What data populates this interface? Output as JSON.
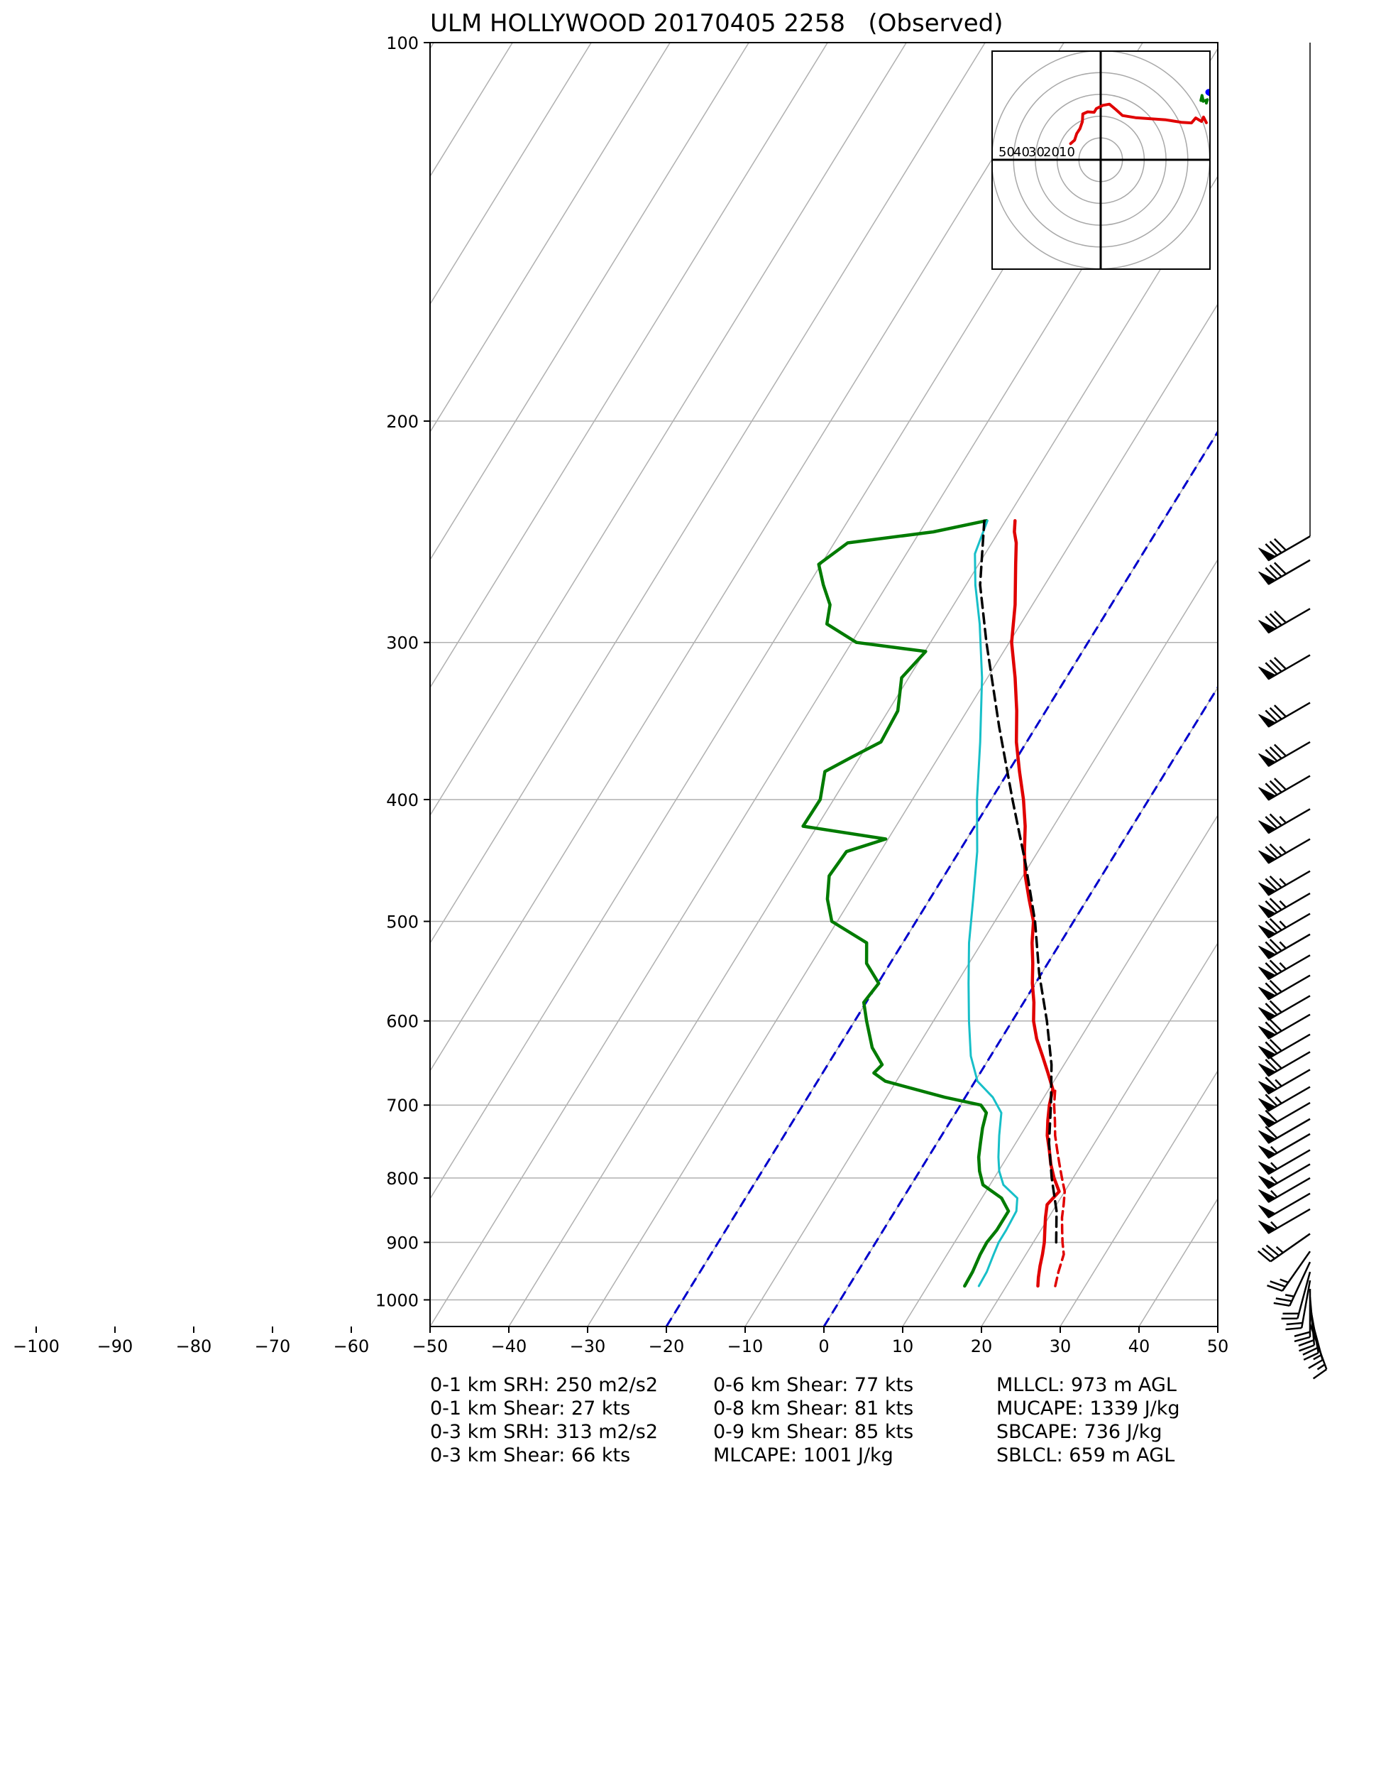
{
  "chart_data": {
    "type": "line",
    "title": "ULM HOLLYWOOD 20170405 2258   (Observed)",
    "x_axis": {
      "range": [
        -100,
        50
      ],
      "plot_range": [
        -50,
        50
      ],
      "ticks": [
        -100,
        -90,
        -80,
        -70,
        -60,
        -50,
        -40,
        -30,
        -20,
        -10,
        0,
        10,
        20,
        30,
        40,
        50
      ]
    },
    "y_axis": {
      "scale": "log",
      "range": [
        1050,
        100
      ],
      "ticks": [
        100,
        200,
        300,
        400,
        500,
        600,
        700,
        800,
        900,
        1000
      ]
    },
    "grid": true,
    "skew_isotherms": true,
    "colors": {
      "temperature": "#e00000",
      "dewpoint": "#007b00",
      "wetbulb": "#17bfc8",
      "parcel": "#000000",
      "isotherm_highlight": "#0000cc",
      "grid": "#b0b0b0"
    },
    "series": [
      {
        "key": "temperature",
        "points": [
          [
            975,
            24
          ],
          [
            960,
            23.4
          ],
          [
            940,
            22.7
          ],
          [
            920,
            22.1
          ],
          [
            900,
            21.4
          ],
          [
            880,
            20.5
          ],
          [
            860,
            19.6
          ],
          [
            840,
            18.8
          ],
          [
            820,
            19.3
          ],
          [
            800,
            17.6
          ],
          [
            780,
            16.1
          ],
          [
            760,
            14.8
          ],
          [
            740,
            13.4
          ],
          [
            720,
            12.3
          ],
          [
            700,
            11.3
          ],
          [
            680,
            10.5
          ],
          [
            660,
            8.6
          ],
          [
            640,
            6.6
          ],
          [
            620,
            4.5
          ],
          [
            600,
            2.7
          ],
          [
            580,
            1.3
          ],
          [
            560,
            -0.4
          ],
          [
            540,
            -1.9
          ],
          [
            520,
            -3.6
          ],
          [
            500,
            -5.1
          ],
          [
            480,
            -7.4
          ],
          [
            460,
            -9.7
          ],
          [
            440,
            -11.7
          ],
          [
            420,
            -13.6
          ],
          [
            400,
            -15.9
          ],
          [
            380,
            -18.6
          ],
          [
            360,
            -21.3
          ],
          [
            340,
            -23.7
          ],
          [
            320,
            -26.5
          ],
          [
            300,
            -29.7
          ],
          [
            280,
            -32.2
          ],
          [
            260,
            -35.3
          ],
          [
            250,
            -36.9
          ],
          [
            245,
            -38
          ],
          [
            240,
            -38.8
          ]
        ]
      },
      {
        "key": "dewpoint",
        "points": [
          [
            975,
            14.7
          ],
          [
            950,
            14.6
          ],
          [
            920,
            14.2
          ],
          [
            900,
            14.1
          ],
          [
            880,
            14.4
          ],
          [
            850,
            14.4
          ],
          [
            830,
            12.5
          ],
          [
            810,
            9.1
          ],
          [
            790,
            7.6
          ],
          [
            770,
            6.4
          ],
          [
            750,
            5.5
          ],
          [
            730,
            4.6
          ],
          [
            710,
            3.9
          ],
          [
            700,
            2.6
          ],
          [
            690,
            -2.6
          ],
          [
            670,
            -11.4
          ],
          [
            660,
            -13.5
          ],
          [
            650,
            -13.1
          ],
          [
            630,
            -15.7
          ],
          [
            600,
            -18.5
          ],
          [
            580,
            -20.3
          ],
          [
            560,
            -19.9
          ],
          [
            540,
            -23
          ],
          [
            520,
            -24.6
          ],
          [
            500,
            -30.7
          ],
          [
            480,
            -33
          ],
          [
            460,
            -34.6
          ],
          [
            440,
            -34.3
          ],
          [
            430,
            -30.3
          ],
          [
            420,
            -41.8
          ],
          [
            400,
            -41.7
          ],
          [
            380,
            -43.3
          ],
          [
            370,
            -41
          ],
          [
            360,
            -38.5
          ],
          [
            340,
            -38.8
          ],
          [
            320,
            -40.9
          ],
          [
            305,
            -39.9
          ],
          [
            300,
            -49.4
          ],
          [
            290,
            -54.6
          ],
          [
            280,
            -55.7
          ],
          [
            270,
            -58.1
          ],
          [
            260,
            -60.3
          ],
          [
            250,
            -58.3
          ],
          [
            245,
            -48.3
          ],
          [
            240,
            -42.4
          ]
        ]
      },
      {
        "key": "wetbulb",
        "points": [
          [
            975,
            16.5
          ],
          [
            950,
            16.4
          ],
          [
            920,
            15.9
          ],
          [
            900,
            15.6
          ],
          [
            880,
            15.6
          ],
          [
            850,
            15.4
          ],
          [
            830,
            14.5
          ],
          [
            810,
            11.7
          ],
          [
            790,
            10.1
          ],
          [
            770,
            8.9
          ],
          [
            740,
            7.3
          ],
          [
            710,
            5.8
          ],
          [
            690,
            3.5
          ],
          [
            670,
            0.3
          ],
          [
            640,
            -2.5
          ],
          [
            600,
            -5.5
          ],
          [
            560,
            -8.5
          ],
          [
            520,
            -11.6
          ],
          [
            480,
            -14.5
          ],
          [
            440,
            -17.7
          ],
          [
            400,
            -21.8
          ],
          [
            360,
            -25.9
          ],
          [
            320,
            -30.7
          ],
          [
            290,
            -35.2
          ],
          [
            270,
            -38.8
          ],
          [
            255,
            -41.3
          ],
          [
            240,
            -42.3
          ]
        ]
      },
      {
        "key": "virtual_temperature",
        "points": [
          [
            975,
            26.2
          ],
          [
            950,
            25.5
          ],
          [
            920,
            24.8
          ],
          [
            900,
            23.7
          ],
          [
            880,
            22.7
          ],
          [
            860,
            21.7
          ],
          [
            840,
            20.9
          ],
          [
            820,
            20
          ],
          [
            800,
            18.6
          ],
          [
            780,
            17.2
          ],
          [
            760,
            15.8
          ],
          [
            740,
            14.4
          ],
          [
            720,
            13.2
          ],
          [
            700,
            11.9
          ],
          [
            680,
            10.8
          ]
        ]
      },
      {
        "key": "parcel",
        "points": [
          [
            900,
            22.9
          ],
          [
            850,
            20.5
          ],
          [
            800,
            17.3
          ],
          [
            750,
            14.2
          ],
          [
            700,
            11.5
          ],
          [
            650,
            8.4
          ],
          [
            600,
            4.4
          ],
          [
            550,
            -0.3
          ],
          [
            500,
            -4.9
          ],
          [
            450,
            -10.6
          ],
          [
            400,
            -17.3
          ],
          [
            350,
            -24.7
          ],
          [
            300,
            -32.9
          ],
          [
            270,
            -38.2
          ],
          [
            240,
            -42.7
          ]
        ]
      }
    ],
    "isotherm_highlights": [
      -20,
      0
    ],
    "hodograph": {
      "ring_labels": [
        "50",
        "40",
        "30",
        "20",
        "10"
      ],
      "ring_values": [
        10,
        20,
        30,
        40,
        50
      ],
      "range": [
        -50,
        50
      ],
      "trace_red": [
        [
          -13.8,
          7.4
        ],
        [
          -12,
          9
        ],
        [
          -11,
          12
        ],
        [
          -9.5,
          14.3
        ],
        [
          -8.4,
          17.5
        ],
        [
          -8.2,
          21
        ],
        [
          -6,
          22
        ],
        [
          -3,
          21.8
        ],
        [
          -2,
          23.5
        ],
        [
          1,
          25
        ],
        [
          4,
          25.5
        ],
        [
          7,
          23
        ],
        [
          10,
          20.3
        ],
        [
          16,
          19.3
        ],
        [
          23,
          18.8
        ],
        [
          30,
          18.3
        ],
        [
          37,
          17.2
        ],
        [
          41.7,
          16.9
        ],
        [
          43.6,
          19.2
        ],
        [
          46.3,
          17.6
        ],
        [
          47.2,
          19.6
        ],
        [
          48.5,
          17
        ]
      ],
      "trace_green": [
        [
          48,
          27
        ],
        [
          46,
          27.2
        ],
        [
          46.5,
          29.5
        ],
        [
          47.1,
          26.8
        ],
        [
          49,
          27.6
        ],
        [
          48.5,
          26
        ]
      ],
      "trace_blue": [
        [
          49.5,
          31
        ],
        [
          50.5,
          30.5
        ]
      ]
    },
    "wind_barbs": [
      {
        "p": 247,
        "spd": 80,
        "dir": 240
      },
      {
        "p": 258,
        "spd": 80,
        "dir": 240
      },
      {
        "p": 282,
        "spd": 80,
        "dir": 240
      },
      {
        "p": 307,
        "spd": 80,
        "dir": 240
      },
      {
        "p": 335,
        "spd": 80,
        "dir": 240
      },
      {
        "p": 360,
        "spd": 80,
        "dir": 240
      },
      {
        "p": 383,
        "spd": 80,
        "dir": 240
      },
      {
        "p": 407,
        "spd": 75,
        "dir": 240
      },
      {
        "p": 430,
        "spd": 75,
        "dir": 240
      },
      {
        "p": 456,
        "spd": 75,
        "dir": 240
      },
      {
        "p": 475,
        "spd": 75,
        "dir": 240
      },
      {
        "p": 493,
        "spd": 75,
        "dir": 240
      },
      {
        "p": 512,
        "spd": 75,
        "dir": 240
      },
      {
        "p": 532,
        "spd": 75,
        "dir": 240
      },
      {
        "p": 552,
        "spd": 70,
        "dir": 240
      },
      {
        "p": 573,
        "spd": 70,
        "dir": 240
      },
      {
        "p": 593,
        "spd": 70,
        "dir": 240
      },
      {
        "p": 615,
        "spd": 70,
        "dir": 240
      },
      {
        "p": 635,
        "spd": 70,
        "dir": 240
      },
      {
        "p": 656,
        "spd": 65,
        "dir": 240
      },
      {
        "p": 677,
        "spd": 65,
        "dir": 240
      },
      {
        "p": 697,
        "spd": 60,
        "dir": 240
      },
      {
        "p": 718,
        "spd": 60,
        "dir": 240
      },
      {
        "p": 738,
        "spd": 55,
        "dir": 240
      },
      {
        "p": 760,
        "spd": 55,
        "dir": 240
      },
      {
        "p": 780,
        "spd": 55,
        "dir": 240
      },
      {
        "p": 800,
        "spd": 55,
        "dir": 240
      },
      {
        "p": 823,
        "spd": 50,
        "dir": 240
      },
      {
        "p": 847,
        "spd": 55,
        "dir": 240
      },
      {
        "p": 886,
        "spd": 35,
        "dir": 235
      },
      {
        "p": 915,
        "spd": 25,
        "dir": 215
      },
      {
        "p": 933,
        "spd": 25,
        "dir": 205
      },
      {
        "p": 950,
        "spd": 20,
        "dir": 195
      },
      {
        "p": 965,
        "spd": 20,
        "dir": 190
      },
      {
        "p": 980,
        "spd": 20,
        "dir": 180
      },
      {
        "p": 995,
        "spd": 20,
        "dir": 175
      },
      {
        "p": 1010,
        "spd": 20,
        "dir": 170
      },
      {
        "p": 1025,
        "spd": 15,
        "dir": 165
      },
      {
        "p": 1045,
        "spd": 15,
        "dir": 160
      }
    ]
  },
  "stats": [
    [
      "0-1 km SRH: 250 m2/s2",
      "0-1 km Shear: 27 kts",
      "0-3 km SRH: 313 m2/s2",
      "0-3 km Shear: 66 kts"
    ],
    [
      "0-6 km Shear: 77 kts",
      "0-8 km Shear: 81 kts",
      "0-9 km Shear: 85 kts",
      "MLCAPE: 1001 J/kg"
    ],
    [
      "MLLCL: 973 m AGL",
      "MUCAPE: 1339 J/kg",
      "SBCAPE: 736 J/kg",
      "SBLCL: 659 m AGL"
    ]
  ]
}
